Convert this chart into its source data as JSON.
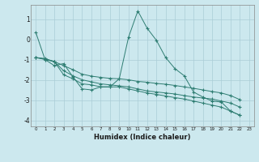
{
  "xlabel": "Humidex (Indice chaleur)",
  "background_color": "#cce8ee",
  "grid_color": "#aacdd6",
  "line_color": "#2e7d72",
  "xlim": [
    -0.5,
    23.5
  ],
  "ylim": [
    -4.3,
    1.7
  ],
  "xticks": [
    0,
    1,
    2,
    3,
    4,
    5,
    6,
    7,
    8,
    9,
    10,
    11,
    12,
    13,
    14,
    15,
    16,
    17,
    18,
    19,
    20,
    21,
    22,
    23
  ],
  "yticks": [
    -4,
    -3,
    -2,
    -1,
    0,
    1
  ],
  "x_start": 0,
  "series": [
    {
      "x": [
        0,
        1,
        2,
        3,
        4,
        5,
        6,
        7,
        8,
        9,
        10,
        11,
        12,
        13,
        14,
        15,
        16,
        17,
        18,
        19,
        20,
        21,
        22
      ],
      "y": [
        0.35,
        -1.0,
        -1.3,
        -1.2,
        -1.85,
        -2.45,
        -2.5,
        -2.35,
        -2.35,
        -1.95,
        0.1,
        1.4,
        0.55,
        -0.05,
        -0.9,
        -1.45,
        -1.8,
        -2.6,
        -2.85,
        -3.05,
        -3.1,
        -3.55,
        -3.75
      ]
    },
    {
      "x": [
        0,
        1,
        2,
        3,
        4,
        5,
        6,
        7,
        8,
        9,
        10,
        11,
        12,
        13,
        14,
        15,
        16,
        17,
        18,
        19,
        20,
        21,
        22
      ],
      "y": [
        -0.9,
        -0.95,
        -1.1,
        -1.55,
        -1.8,
        -2.0,
        -2.1,
        -2.2,
        -2.25,
        -2.3,
        -2.35,
        -2.45,
        -2.55,
        -2.6,
        -2.65,
        -2.7,
        -2.78,
        -2.85,
        -2.9,
        -2.95,
        -3.05,
        -3.15,
        -3.35
      ]
    },
    {
      "x": [
        0,
        1,
        2,
        3,
        4,
        5,
        6,
        7,
        8,
        9,
        10,
        11,
        12,
        13,
        14,
        15,
        16,
        17,
        18,
        19,
        20,
        21,
        22
      ],
      "y": [
        -0.9,
        -0.98,
        -1.1,
        -1.75,
        -1.95,
        -2.2,
        -2.25,
        -2.35,
        -2.35,
        -2.35,
        -2.45,
        -2.55,
        -2.65,
        -2.72,
        -2.8,
        -2.88,
        -2.95,
        -3.05,
        -3.15,
        -3.25,
        -3.35,
        -3.55,
        -3.75
      ]
    },
    {
      "x": [
        0,
        1,
        2,
        3,
        4,
        5,
        6,
        7,
        8,
        9,
        10,
        11,
        12,
        13,
        14,
        15,
        16,
        17,
        18,
        19,
        20,
        21,
        22
      ],
      "y": [
        -0.9,
        -1.0,
        -1.1,
        -1.3,
        -1.5,
        -1.72,
        -1.82,
        -1.88,
        -1.93,
        -1.95,
        -2.0,
        -2.08,
        -2.12,
        -2.18,
        -2.22,
        -2.28,
        -2.35,
        -2.42,
        -2.5,
        -2.58,
        -2.65,
        -2.78,
        -2.98
      ]
    }
  ]
}
